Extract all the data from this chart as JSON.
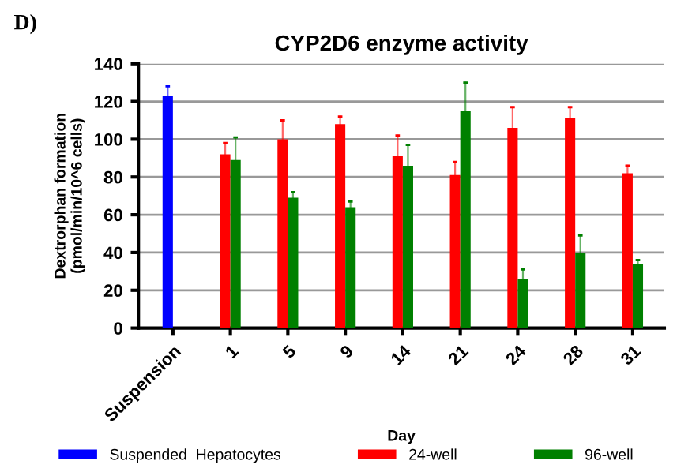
{
  "chart_data": {
    "type": "bar",
    "title": "CYP2D6 enzyme activity",
    "xlabel": "Day",
    "ylabel": "Dextrorphan formation\n(pmol/min/10^6 cells)",
    "annotations": [
      "D)"
    ],
    "categories": [
      "Suspension",
      "1",
      "5",
      "9",
      "14",
      "21",
      "24",
      "28",
      "31"
    ],
    "series": [
      {
        "name": "Suspended  Hepatocytes",
        "color": "#0000ff",
        "values": [
          123,
          null,
          null,
          null,
          null,
          null,
          null,
          null,
          null
        ],
        "errors": [
          [
            123,
            128
          ],
          null,
          null,
          null,
          null,
          null,
          null,
          null,
          null
        ]
      },
      {
        "name": "24-well",
        "color": "#ff0000",
        "values": [
          null,
          92,
          100,
          108,
          91,
          81,
          106,
          111,
          82
        ],
        "errors": [
          null,
          [
            92,
            98
          ],
          [
            100,
            110
          ],
          [
            108,
            112
          ],
          [
            91,
            102
          ],
          [
            81,
            88
          ],
          [
            106,
            117
          ],
          [
            111,
            117
          ],
          [
            82,
            86
          ]
        ]
      },
      {
        "name": "96-well",
        "color": "#008000",
        "values": [
          null,
          89,
          69,
          64,
          86,
          115,
          26,
          40,
          34
        ],
        "errors": [
          null,
          [
            89,
            101
          ],
          [
            69,
            72
          ],
          [
            64,
            67
          ],
          [
            86,
            97
          ],
          [
            115,
            130
          ],
          [
            26,
            31
          ],
          [
            40,
            49
          ],
          [
            34,
            36
          ]
        ]
      }
    ],
    "ylim": [
      0,
      140
    ],
    "yticks": [
      0,
      20,
      40,
      60,
      80,
      100,
      120,
      140
    ],
    "grid": "y",
    "legend": "bottom"
  }
}
